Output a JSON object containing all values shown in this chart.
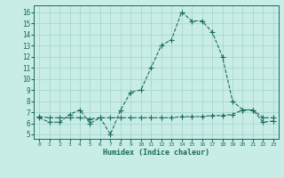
{
  "xlabel": "Humidex (Indice chaleur)",
  "ylabel": "",
  "background_color": "#c8ece6",
  "grid_color": "#a8d8d0",
  "line_color": "#1a6b5a",
  "xlim": [
    -0.5,
    23.5
  ],
  "ylim": [
    4.6,
    16.6
  ],
  "xticks": [
    0,
    1,
    2,
    3,
    4,
    5,
    6,
    7,
    8,
    9,
    10,
    11,
    12,
    13,
    14,
    15,
    16,
    17,
    18,
    19,
    20,
    21,
    22,
    23
  ],
  "yticks": [
    5,
    6,
    7,
    8,
    9,
    10,
    11,
    12,
    13,
    14,
    15,
    16
  ],
  "curve1_x": [
    0,
    1,
    2,
    3,
    4,
    5,
    6,
    7,
    8,
    9,
    10,
    11,
    12,
    13,
    14,
    15,
    16,
    17,
    18,
    19,
    20,
    21,
    22,
    23
  ],
  "curve1_y": [
    6.5,
    6.1,
    6.1,
    6.8,
    7.2,
    6.0,
    6.5,
    5.0,
    7.2,
    8.8,
    9.0,
    11.0,
    13.0,
    13.5,
    16.0,
    15.2,
    15.2,
    14.2,
    12.0,
    8.0,
    7.2,
    7.2,
    6.1,
    6.2
  ],
  "curve2_x": [
    0,
    1,
    2,
    3,
    4,
    5,
    6,
    7,
    8,
    9,
    10,
    11,
    12,
    13,
    14,
    15,
    16,
    17,
    18,
    19,
    20,
    21,
    22,
    23
  ],
  "curve2_y": [
    6.6,
    6.5,
    6.5,
    6.5,
    6.5,
    6.4,
    6.5,
    6.5,
    6.5,
    6.5,
    6.5,
    6.5,
    6.5,
    6.5,
    6.6,
    6.6,
    6.6,
    6.7,
    6.7,
    6.8,
    7.2,
    7.2,
    6.5,
    6.5
  ],
  "marker_size": 4,
  "line_width": 0.8
}
